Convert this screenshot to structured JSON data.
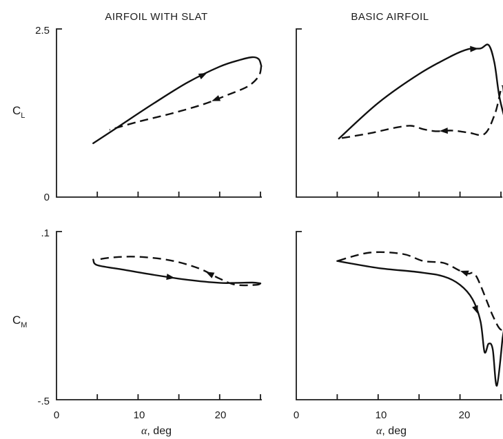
{
  "columns": {
    "left_title": "AIRFOIL WITH SLAT",
    "right_title": "BASIC AIRFOIL"
  },
  "ylabels": {
    "cl_main": "C",
    "cl_sub": "L",
    "cm_main": "C",
    "cm_sub": "M"
  },
  "xlabel": {
    "alpha": "α",
    "unit": ", deg"
  },
  "ticks": {
    "cl_top": "2.5",
    "cl_zero": "0",
    "cm_top": ".1",
    "cm_bottom": "-.5",
    "x0": "0",
    "x10": "10",
    "x20": "20"
  },
  "chart_data": [
    {
      "type": "line",
      "panel": "top-left",
      "title": "AIRFOIL WITH SLAT",
      "ylabel": "C_L",
      "xlim": [
        0,
        25
      ],
      "ylim": [
        0,
        2.5
      ],
      "series": [
        {
          "style": "solid",
          "x": [
            4.5,
            8,
            12,
            16,
            20,
            22.5,
            24,
            24.8,
            25.1
          ],
          "y": [
            0.8,
            1.08,
            1.4,
            1.7,
            1.94,
            2.04,
            2.08,
            2.05,
            1.95
          ]
        },
        {
          "style": "dashed",
          "x": [
            25.1,
            24.8,
            23.5,
            21,
            18,
            14,
            10,
            6.5
          ],
          "y": [
            1.95,
            1.8,
            1.65,
            1.52,
            1.38,
            1.24,
            1.12,
            1.0
          ]
        }
      ]
    },
    {
      "type": "line",
      "panel": "top-right",
      "title": "BASIC AIRFOIL",
      "ylabel": "C_L",
      "xlim": [
        0,
        25
      ],
      "ylim": [
        0,
        2.5
      ],
      "series": [
        {
          "style": "solid",
          "x": [
            5.2,
            10,
            15,
            19,
            21,
            22.5,
            23.5,
            24.2,
            24.8,
            25.5
          ],
          "y": [
            0.87,
            1.4,
            1.83,
            2.1,
            2.2,
            2.21,
            2.26,
            2.0,
            1.5,
            1.15
          ]
        },
        {
          "style": "dashed",
          "x": [
            25.5,
            25.2,
            24.3,
            23,
            21,
            19,
            17,
            15.5,
            14,
            12,
            9,
            5.2
          ],
          "y": [
            1.15,
            1.65,
            1.25,
            0.94,
            0.96,
            0.99,
            0.98,
            1.01,
            1.06,
            1.03,
            0.95,
            0.87
          ]
        }
      ]
    },
    {
      "type": "line",
      "panel": "bottom-left",
      "ylabel": "C_M",
      "xlabel": "α, deg",
      "xlim": [
        0,
        25
      ],
      "ylim": [
        -0.5,
        0.1
      ],
      "series": [
        {
          "style": "solid",
          "x": [
            4.5,
            5,
            8,
            12,
            16,
            20,
            22,
            24,
            25
          ],
          "y": [
            0.0,
            -0.02,
            -0.035,
            -0.055,
            -0.072,
            -0.083,
            -0.083,
            -0.082,
            -0.085
          ]
        },
        {
          "style": "dashed",
          "x": [
            25,
            24.5,
            22,
            20,
            17.5,
            14,
            10,
            7,
            5
          ],
          "y": [
            -0.085,
            -0.09,
            -0.09,
            -0.068,
            -0.032,
            -0.003,
            0.01,
            0.008,
            0.0
          ]
        }
      ]
    },
    {
      "type": "line",
      "panel": "bottom-right",
      "ylabel": "C_M",
      "xlabel": "α, deg",
      "xlim": [
        0,
        25
      ],
      "ylim": [
        -0.5,
        0.1
      ],
      "series": [
        {
          "style": "solid",
          "x": [
            5,
            10,
            15,
            18,
            20,
            21.5,
            22.5,
            23,
            23.5,
            24,
            24.5,
            25.2
          ],
          "y": [
            -0.005,
            -0.03,
            -0.045,
            -0.06,
            -0.09,
            -0.14,
            -0.22,
            -0.33,
            -0.3,
            -0.32,
            -0.45,
            -0.28
          ]
        },
        {
          "style": "dashed",
          "x": [
            25.2,
            25.5,
            25,
            24,
            22,
            21,
            20,
            18,
            15.5,
            13,
            9,
            5
          ],
          "y": [
            -0.28,
            -0.22,
            -0.25,
            -0.2,
            -0.06,
            -0.05,
            -0.04,
            -0.012,
            -0.005,
            0.02,
            0.025,
            -0.005
          ]
        }
      ]
    }
  ]
}
